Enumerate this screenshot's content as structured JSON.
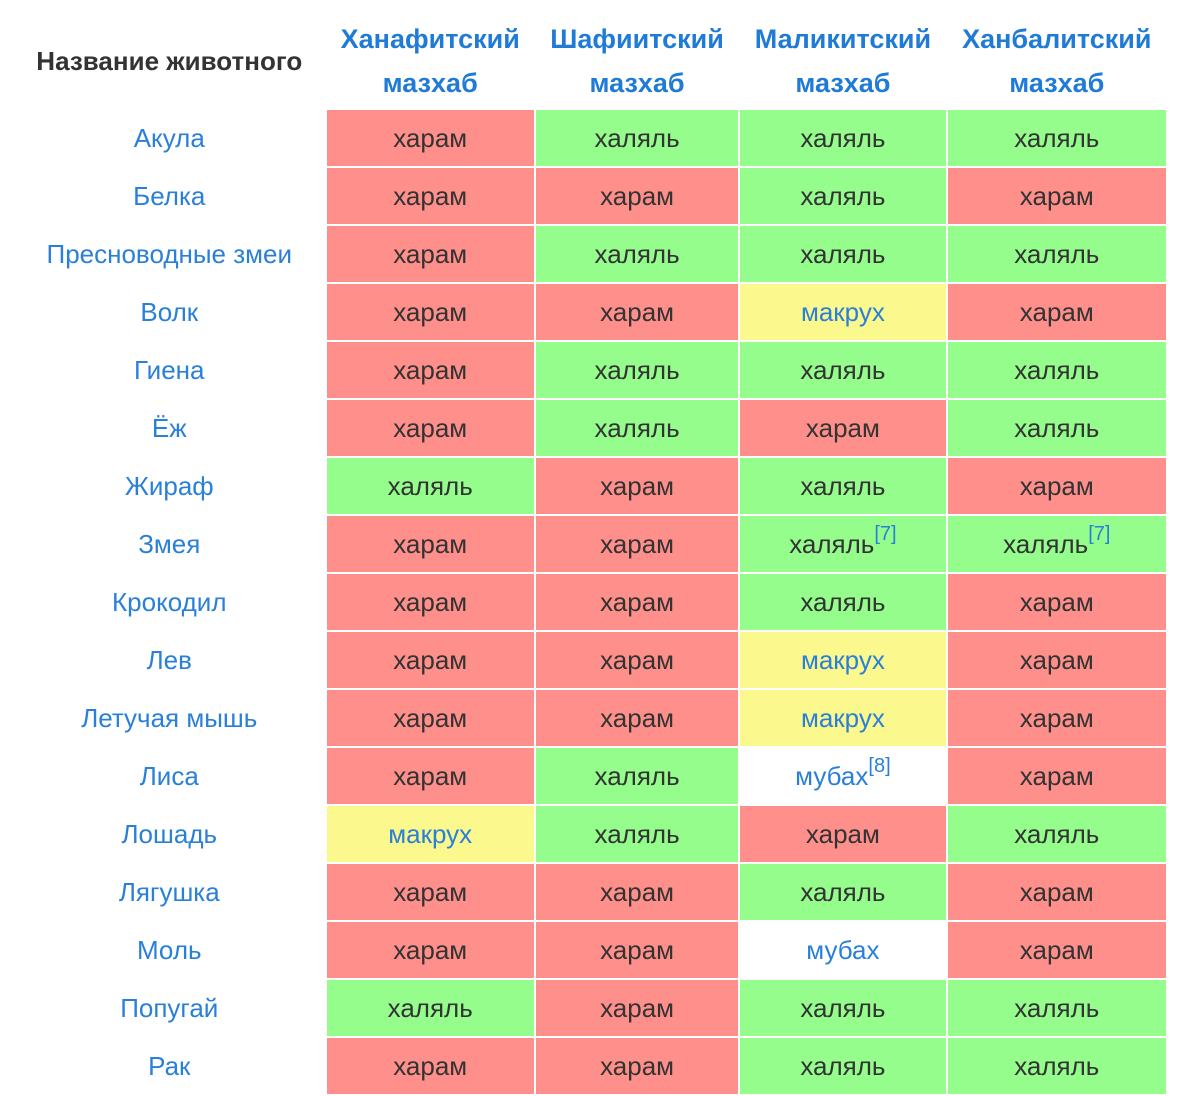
{
  "header": {
    "animal_col": "Название животного",
    "madhhabs": [
      {
        "line1": "Ханафитский",
        "line2": "мазхаб"
      },
      {
        "line1": "Шафиитский",
        "line2": "мазхаб"
      },
      {
        "line1": "Маликитский",
        "line2": "мазхаб"
      },
      {
        "line1": "Ханбалитский",
        "line2": "мазхаб"
      }
    ]
  },
  "rows": [
    {
      "animal": "Акула",
      "cells": [
        {
          "t": "харам",
          "k": "haram"
        },
        {
          "t": "халяль",
          "k": "halal"
        },
        {
          "t": "халяль",
          "k": "halal"
        },
        {
          "t": "халяль",
          "k": "halal"
        }
      ]
    },
    {
      "animal": "Белка",
      "cells": [
        {
          "t": "харам",
          "k": "haram"
        },
        {
          "t": "харам",
          "k": "haram"
        },
        {
          "t": "халяль",
          "k": "halal"
        },
        {
          "t": "харам",
          "k": "haram"
        }
      ]
    },
    {
      "animal": "Пресноводные змеи",
      "cells": [
        {
          "t": "харам",
          "k": "haram"
        },
        {
          "t": "халяль",
          "k": "halal"
        },
        {
          "t": "халяль",
          "k": "halal"
        },
        {
          "t": "халяль",
          "k": "halal"
        }
      ]
    },
    {
      "animal": "Волк",
      "cells": [
        {
          "t": "харам",
          "k": "haram"
        },
        {
          "t": "харам",
          "k": "haram"
        },
        {
          "t": "макрух",
          "k": "makruh"
        },
        {
          "t": "харам",
          "k": "haram"
        }
      ]
    },
    {
      "animal": "Гиена",
      "cells": [
        {
          "t": "харам",
          "k": "haram"
        },
        {
          "t": "халяль",
          "k": "halal"
        },
        {
          "t": "халяль",
          "k": "halal"
        },
        {
          "t": "халяль",
          "k": "halal"
        }
      ]
    },
    {
      "animal": "Ёж",
      "cells": [
        {
          "t": "харам",
          "k": "haram"
        },
        {
          "t": "халяль",
          "k": "halal"
        },
        {
          "t": "харам",
          "k": "haram"
        },
        {
          "t": "халяль",
          "k": "halal"
        }
      ]
    },
    {
      "animal": "Жираф",
      "cells": [
        {
          "t": "халяль",
          "k": "halal"
        },
        {
          "t": "харам",
          "k": "haram"
        },
        {
          "t": "халяль",
          "k": "halal"
        },
        {
          "t": "харам",
          "k": "haram"
        }
      ]
    },
    {
      "animal": "Змея",
      "cells": [
        {
          "t": "харам",
          "k": "haram"
        },
        {
          "t": "харам",
          "k": "haram"
        },
        {
          "t": "халяль",
          "k": "halal",
          "ref": "[7]"
        },
        {
          "t": "халяль",
          "k": "halal",
          "ref": "[7]"
        }
      ]
    },
    {
      "animal": "Крокодил",
      "cells": [
        {
          "t": "харам",
          "k": "haram"
        },
        {
          "t": "харам",
          "k": "haram"
        },
        {
          "t": "халяль",
          "k": "halal"
        },
        {
          "t": "харам",
          "k": "haram"
        }
      ]
    },
    {
      "animal": "Лев",
      "cells": [
        {
          "t": "харам",
          "k": "haram"
        },
        {
          "t": "харам",
          "k": "haram"
        },
        {
          "t": "макрух",
          "k": "makruh"
        },
        {
          "t": "харам",
          "k": "haram"
        }
      ]
    },
    {
      "animal": "Летучая мышь",
      "cells": [
        {
          "t": "харам",
          "k": "haram"
        },
        {
          "t": "харам",
          "k": "haram"
        },
        {
          "t": "макрух",
          "k": "makruh"
        },
        {
          "t": "харам",
          "k": "haram"
        }
      ]
    },
    {
      "animal": "Лиса",
      "cells": [
        {
          "t": "харам",
          "k": "haram"
        },
        {
          "t": "халяль",
          "k": "halal"
        },
        {
          "t": "мубах",
          "k": "mubah",
          "ref": "[8]"
        },
        {
          "t": "харам",
          "k": "haram"
        }
      ]
    },
    {
      "animal": "Лошадь",
      "cells": [
        {
          "t": "макрух",
          "k": "makruh"
        },
        {
          "t": "халяль",
          "k": "halal"
        },
        {
          "t": "харам",
          "k": "haram"
        },
        {
          "t": "халяль",
          "k": "halal"
        }
      ]
    },
    {
      "animal": "Лягушка",
      "cells": [
        {
          "t": "харам",
          "k": "haram"
        },
        {
          "t": "харам",
          "k": "haram"
        },
        {
          "t": "халяль",
          "k": "halal"
        },
        {
          "t": "харам",
          "k": "haram"
        }
      ]
    },
    {
      "animal": "Моль",
      "cells": [
        {
          "t": "харам",
          "k": "haram"
        },
        {
          "t": "харам",
          "k": "haram"
        },
        {
          "t": "мубах",
          "k": "mubah"
        },
        {
          "t": "харам",
          "k": "haram"
        }
      ]
    },
    {
      "animal": "Попугай",
      "cells": [
        {
          "t": "халяль",
          "k": "halal"
        },
        {
          "t": "харам",
          "k": "haram"
        },
        {
          "t": "халяль",
          "k": "halal"
        },
        {
          "t": "халяль",
          "k": "halal"
        }
      ]
    },
    {
      "animal": "Рак",
      "cells": [
        {
          "t": "харам",
          "k": "haram"
        },
        {
          "t": "харам",
          "k": "haram"
        },
        {
          "t": "халяль",
          "k": "halal"
        },
        {
          "t": "халяль",
          "k": "halal"
        }
      ]
    }
  ],
  "colors": {
    "haram": "#ff8f8a",
    "halal": "#94fd8c",
    "makruh": "#fbf88e",
    "mubah": "#ffffff",
    "link": "#2a80d8",
    "header_link": "#1f7bd6"
  }
}
